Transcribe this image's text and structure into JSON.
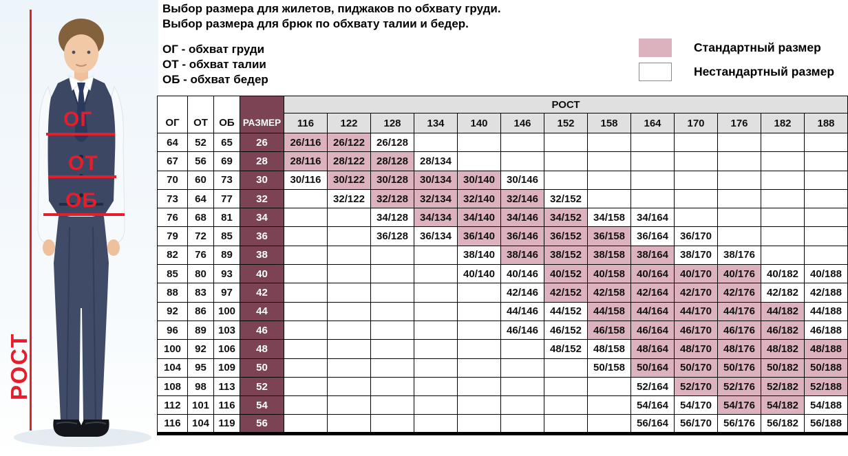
{
  "title": {
    "line1": "Выбор размера для жилетов, пиджаков по обхвату груди.",
    "line2": "Выбор размера для брюк по обхвату талии и бедер."
  },
  "abbreviations": [
    "ОГ - обхват груди",
    "ОТ - обхват талии",
    "ОБ - обхват бедер"
  ],
  "legend": {
    "standard_label": "Стандартный размер",
    "nonstandard_label": "Нестандартный размер"
  },
  "photo": {
    "chest_label": "ОГ",
    "waist_label": "ОТ",
    "hips_label": "ОБ",
    "height_label": "РОСТ"
  },
  "colors": {
    "standard_fill": "#dcb2bf",
    "size_column_fill": "#7c4355",
    "header_fill": "#e0e0e0",
    "annotation_red": "#e61e2b"
  },
  "table": {
    "columns": {
      "og": "ОГ",
      "ot": "ОТ",
      "ob": "ОБ",
      "size": "РАЗМЕР"
    },
    "rost_header": "РОСТ",
    "heights": [
      116,
      122,
      128,
      134,
      140,
      146,
      152,
      158,
      164,
      170,
      176,
      182,
      188
    ],
    "rows": [
      {
        "og": 64,
        "ot": 52,
        "ob": 65,
        "size": 26,
        "cells": [
          {
            "v": "26/116",
            "std": true
          },
          {
            "v": "26/122",
            "std": true
          },
          {
            "v": "26/128",
            "std": false
          },
          null,
          null,
          null,
          null,
          null,
          null,
          null,
          null,
          null,
          null
        ]
      },
      {
        "og": 67,
        "ot": 56,
        "ob": 69,
        "size": 28,
        "cells": [
          {
            "v": "28/116",
            "std": true
          },
          {
            "v": "28/122",
            "std": true
          },
          {
            "v": "28/128",
            "std": true
          },
          {
            "v": "28/134",
            "std": false
          },
          null,
          null,
          null,
          null,
          null,
          null,
          null,
          null,
          null
        ]
      },
      {
        "og": 70,
        "ot": 60,
        "ob": 73,
        "size": 30,
        "cells": [
          {
            "v": "30/116",
            "std": false
          },
          {
            "v": "30/122",
            "std": true
          },
          {
            "v": "30/128",
            "std": true
          },
          {
            "v": "30/134",
            "std": true
          },
          {
            "v": "30/140",
            "std": true
          },
          {
            "v": "30/146",
            "std": false
          },
          null,
          null,
          null,
          null,
          null,
          null,
          null
        ]
      },
      {
        "og": 73,
        "ot": 64,
        "ob": 77,
        "size": 32,
        "cells": [
          null,
          {
            "v": "32/122",
            "std": false
          },
          {
            "v": "32/128",
            "std": true
          },
          {
            "v": "32/134",
            "std": true
          },
          {
            "v": "32/140",
            "std": true
          },
          {
            "v": "32/146",
            "std": true
          },
          {
            "v": "32/152",
            "std": false
          },
          null,
          null,
          null,
          null,
          null,
          null
        ]
      },
      {
        "og": 76,
        "ot": 68,
        "ob": 81,
        "size": 34,
        "cells": [
          null,
          null,
          {
            "v": "34/128",
            "std": false
          },
          {
            "v": "34/134",
            "std": true
          },
          {
            "v": "34/140",
            "std": true
          },
          {
            "v": "34/146",
            "std": true
          },
          {
            "v": "34/152",
            "std": true
          },
          {
            "v": "34/158",
            "std": false
          },
          {
            "v": "34/164",
            "std": false
          },
          null,
          null,
          null,
          null
        ]
      },
      {
        "og": 79,
        "ot": 72,
        "ob": 85,
        "size": 36,
        "cells": [
          null,
          null,
          {
            "v": "36/128",
            "std": false
          },
          {
            "v": "36/134",
            "std": false
          },
          {
            "v": "36/140",
            "std": true
          },
          {
            "v": "36/146",
            "std": true
          },
          {
            "v": "36/152",
            "std": true
          },
          {
            "v": "36/158",
            "std": true
          },
          {
            "v": "36/164",
            "std": false
          },
          {
            "v": "36/170",
            "std": false
          },
          null,
          null,
          null
        ]
      },
      {
        "og": 82,
        "ot": 76,
        "ob": 89,
        "size": 38,
        "cells": [
          null,
          null,
          null,
          null,
          {
            "v": "38/140",
            "std": false
          },
          {
            "v": "38/146",
            "std": true
          },
          {
            "v": "38/152",
            "std": true
          },
          {
            "v": "38/158",
            "std": true
          },
          {
            "v": "38/164",
            "std": true
          },
          {
            "v": "38/170",
            "std": false
          },
          {
            "v": "38/176",
            "std": false
          },
          null,
          null
        ]
      },
      {
        "og": 85,
        "ot": 80,
        "ob": 93,
        "size": 40,
        "cells": [
          null,
          null,
          null,
          null,
          {
            "v": "40/140",
            "std": false
          },
          {
            "v": "40/146",
            "std": false
          },
          {
            "v": "40/152",
            "std": true
          },
          {
            "v": "40/158",
            "std": true
          },
          {
            "v": "40/164",
            "std": true
          },
          {
            "v": "40/170",
            "std": true
          },
          {
            "v": "40/176",
            "std": true
          },
          {
            "v": "40/182",
            "std": false
          },
          {
            "v": "40/188",
            "std": false
          }
        ]
      },
      {
        "og": 88,
        "ot": 83,
        "ob": 97,
        "size": 42,
        "cells": [
          null,
          null,
          null,
          null,
          null,
          {
            "v": "42/146",
            "std": false
          },
          {
            "v": "42/152",
            "std": true
          },
          {
            "v": "42/158",
            "std": true
          },
          {
            "v": "42/164",
            "std": true
          },
          {
            "v": "42/170",
            "std": true
          },
          {
            "v": "42/176",
            "std": true
          },
          {
            "v": "42/182",
            "std": false
          },
          {
            "v": "42/188",
            "std": false
          }
        ]
      },
      {
        "og": 92,
        "ot": 86,
        "ob": 100,
        "size": 44,
        "cells": [
          null,
          null,
          null,
          null,
          null,
          {
            "v": "44/146",
            "std": false
          },
          {
            "v": "44/152",
            "std": false
          },
          {
            "v": "44/158",
            "std": true
          },
          {
            "v": "44/164",
            "std": true
          },
          {
            "v": "44/170",
            "std": true
          },
          {
            "v": "44/176",
            "std": true
          },
          {
            "v": "44/182",
            "std": true
          },
          {
            "v": "44/188",
            "std": false
          }
        ]
      },
      {
        "og": 96,
        "ot": 89,
        "ob": 103,
        "size": 46,
        "cells": [
          null,
          null,
          null,
          null,
          null,
          {
            "v": "46/146",
            "std": false
          },
          {
            "v": "46/152",
            "std": false
          },
          {
            "v": "46/158",
            "std": true
          },
          {
            "v": "46/164",
            "std": true
          },
          {
            "v": "46/170",
            "std": true
          },
          {
            "v": "46/176",
            "std": true
          },
          {
            "v": "46/182",
            "std": true
          },
          {
            "v": "46/188",
            "std": false
          }
        ]
      },
      {
        "og": 100,
        "ot": 92,
        "ob": 106,
        "size": 48,
        "cells": [
          null,
          null,
          null,
          null,
          null,
          null,
          {
            "v": "48/152",
            "std": false
          },
          {
            "v": "48/158",
            "std": false
          },
          {
            "v": "48/164",
            "std": true
          },
          {
            "v": "48/170",
            "std": true
          },
          {
            "v": "48/176",
            "std": true
          },
          {
            "v": "48/182",
            "std": true
          },
          {
            "v": "48/188",
            "std": true
          }
        ]
      },
      {
        "og": 104,
        "ot": 95,
        "ob": 109,
        "size": 50,
        "cells": [
          null,
          null,
          null,
          null,
          null,
          null,
          null,
          {
            "v": "50/158",
            "std": false
          },
          {
            "v": "50/164",
            "std": true
          },
          {
            "v": "50/170",
            "std": true
          },
          {
            "v": "50/176",
            "std": true
          },
          {
            "v": "50/182",
            "std": true
          },
          {
            "v": "50/188",
            "std": true
          }
        ]
      },
      {
        "og": 108,
        "ot": 98,
        "ob": 113,
        "size": 52,
        "cells": [
          null,
          null,
          null,
          null,
          null,
          null,
          null,
          null,
          {
            "v": "52/164",
            "std": false
          },
          {
            "v": "52/170",
            "std": true
          },
          {
            "v": "52/176",
            "std": true
          },
          {
            "v": "52/182",
            "std": true
          },
          {
            "v": "52/188",
            "std": true
          }
        ]
      },
      {
        "og": 112,
        "ot": 101,
        "ob": 116,
        "size": 54,
        "cells": [
          null,
          null,
          null,
          null,
          null,
          null,
          null,
          null,
          {
            "v": "54/164",
            "std": false
          },
          {
            "v": "54/170",
            "std": false
          },
          {
            "v": "54/176",
            "std": true
          },
          {
            "v": "54/182",
            "std": true
          },
          {
            "v": "54/188",
            "std": false
          }
        ]
      },
      {
        "og": 116,
        "ot": 104,
        "ob": 119,
        "size": 56,
        "cells": [
          null,
          null,
          null,
          null,
          null,
          null,
          null,
          null,
          {
            "v": "56/164",
            "std": false
          },
          {
            "v": "56/170",
            "std": false
          },
          {
            "v": "56/176",
            "std": false
          },
          {
            "v": "56/182",
            "std": false
          },
          {
            "v": "56/188",
            "std": false
          }
        ]
      }
    ]
  }
}
